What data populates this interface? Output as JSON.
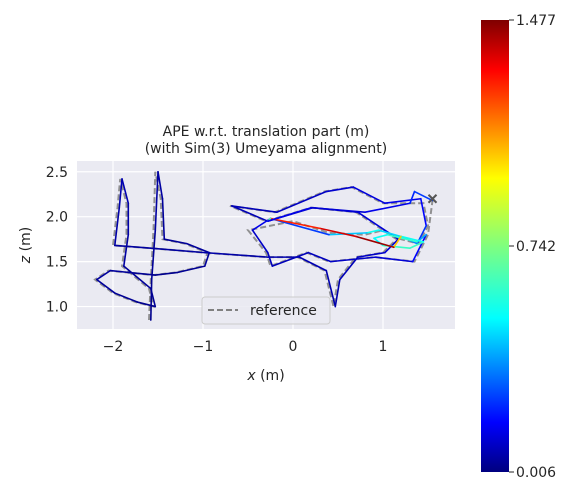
{
  "chart_data": {
    "type": "line",
    "title_line1": "APE w.r.t. translation part (m)",
    "title_line2": "(with Sim(3) Umeyama alignment)",
    "xlabel_var": "x",
    "xlabel_unit": " (m)",
    "ylabel_var": "z",
    "ylabel_unit": " (m)",
    "xlim": [
      -2.4,
      1.8
    ],
    "ylim": [
      0.75,
      2.62
    ],
    "xticks": [
      -2,
      -1,
      0,
      1
    ],
    "xtick_labels": [
      "−2",
      "−1",
      "0",
      "1"
    ],
    "yticks": [
      1.0,
      1.5,
      2.0,
      2.5
    ],
    "ytick_labels": [
      "1.0",
      "1.5",
      "2.0",
      "2.5"
    ],
    "grid": true,
    "background": "#eaeaf2",
    "legend": {
      "placement": "lower-center",
      "entries": [
        "reference"
      ]
    },
    "reference_color": "#808080",
    "reference_style": "dashed",
    "end_marker": {
      "symbol": "x",
      "x": 1.55,
      "y": 2.2,
      "color": "#555555"
    },
    "colorbar": {
      "colormap": "jet",
      "min": 0.006,
      "mid": 0.742,
      "max": 1.477,
      "tick_labels": [
        "1.477",
        "0.742",
        "0.006"
      ]
    },
    "series": [
      {
        "role": "reference",
        "points": [
          [
            -1.6,
            0.85
          ],
          [
            -1.58,
            1.3
          ],
          [
            -1.55,
            1.85
          ],
          [
            -1.53,
            2.5
          ],
          [
            -1.47,
            2.2
          ],
          [
            -1.45,
            1.75
          ],
          [
            -1.2,
            1.7
          ],
          [
            -0.95,
            1.6
          ],
          [
            -1.0,
            1.45
          ],
          [
            -1.3,
            1.38
          ],
          [
            -1.55,
            1.35
          ],
          [
            -1.85,
            1.38
          ],
          [
            -2.05,
            1.4
          ],
          [
            -2.2,
            1.3
          ],
          [
            -2.0,
            1.15
          ],
          [
            -1.75,
            1.05
          ],
          [
            -1.55,
            1.0
          ],
          [
            -1.6,
            1.2
          ],
          [
            -1.9,
            1.45
          ],
          [
            -1.85,
            1.8
          ],
          [
            -1.85,
            2.15
          ],
          [
            -1.92,
            2.42
          ],
          [
            -1.95,
            2.1
          ],
          [
            -2.0,
            1.68
          ],
          [
            -1.6,
            1.65
          ],
          [
            -1.0,
            1.6
          ],
          [
            -0.3,
            1.55
          ],
          [
            0.05,
            1.55
          ],
          [
            0.35,
            1.4
          ],
          [
            0.45,
            1.0
          ],
          [
            0.5,
            1.3
          ],
          [
            0.7,
            1.55
          ],
          [
            1.0,
            1.6
          ],
          [
            1.15,
            1.75
          ],
          [
            0.7,
            2.05
          ],
          [
            0.2,
            2.1
          ],
          [
            -0.3,
            1.95
          ],
          [
            -0.7,
            2.12
          ],
          [
            -0.2,
            2.05
          ],
          [
            0.35,
            2.28
          ],
          [
            0.65,
            2.33
          ],
          [
            1.0,
            2.15
          ],
          [
            1.45,
            2.15
          ],
          [
            1.5,
            1.9
          ],
          [
            1.4,
            1.7
          ],
          [
            1.2,
            1.75
          ],
          [
            1.0,
            1.85
          ],
          [
            0.8,
            1.8
          ],
          [
            0.4,
            1.82
          ],
          [
            0.0,
            1.95
          ],
          [
            -0.5,
            1.85
          ],
          [
            -0.3,
            1.6
          ],
          [
            -0.25,
            1.45
          ],
          [
            0.15,
            1.6
          ],
          [
            0.4,
            1.5
          ],
          [
            0.9,
            1.55
          ],
          [
            1.35,
            1.5
          ],
          [
            1.5,
            1.8
          ],
          [
            1.55,
            2.18
          ]
        ]
      },
      {
        "role": "estimate",
        "points": [
          [
            -1.58,
            0.85,
            0.02
          ],
          [
            -1.57,
            1.3,
            0.03
          ],
          [
            -1.53,
            1.85,
            0.05
          ],
          [
            -1.5,
            2.5,
            0.06
          ],
          [
            -1.45,
            2.2,
            0.05
          ],
          [
            -1.43,
            1.75,
            0.04
          ],
          [
            -1.18,
            1.7,
            0.04
          ],
          [
            -0.93,
            1.6,
            0.05
          ],
          [
            -0.98,
            1.45,
            0.04
          ],
          [
            -1.28,
            1.38,
            0.03
          ],
          [
            -1.53,
            1.35,
            0.03
          ],
          [
            -1.83,
            1.38,
            0.04
          ],
          [
            -2.03,
            1.4,
            0.05
          ],
          [
            -2.18,
            1.3,
            0.05
          ],
          [
            -1.98,
            1.15,
            0.04
          ],
          [
            -1.73,
            1.05,
            0.03
          ],
          [
            -1.53,
            1.0,
            0.03
          ],
          [
            -1.58,
            1.2,
            0.04
          ],
          [
            -1.88,
            1.45,
            0.05
          ],
          [
            -1.83,
            1.8,
            0.06
          ],
          [
            -1.83,
            2.15,
            0.07
          ],
          [
            -1.9,
            2.42,
            0.08
          ],
          [
            -1.93,
            2.1,
            0.07
          ],
          [
            -1.98,
            1.68,
            0.06
          ],
          [
            -1.58,
            1.65,
            0.05
          ],
          [
            -0.98,
            1.6,
            0.06
          ],
          [
            -0.28,
            1.55,
            0.07
          ],
          [
            0.07,
            1.55,
            0.08
          ],
          [
            0.37,
            1.4,
            0.08
          ],
          [
            0.47,
            1.0,
            0.06
          ],
          [
            0.52,
            1.3,
            0.08
          ],
          [
            0.72,
            1.55,
            0.1
          ],
          [
            1.02,
            1.6,
            0.12
          ],
          [
            1.17,
            1.75,
            0.14
          ],
          [
            0.72,
            2.05,
            0.12
          ],
          [
            0.22,
            2.1,
            0.1
          ],
          [
            -0.28,
            1.95,
            0.09
          ],
          [
            -0.68,
            2.12,
            0.08
          ],
          [
            -0.18,
            2.05,
            0.09
          ],
          [
            0.37,
            2.28,
            0.11
          ],
          [
            0.67,
            2.33,
            0.13
          ],
          [
            1.02,
            2.15,
            0.15
          ],
          [
            1.42,
            2.2,
            0.17
          ],
          [
            1.48,
            1.9,
            0.22
          ],
          [
            1.38,
            1.7,
            0.3
          ],
          [
            1.2,
            1.78,
            0.45
          ],
          [
            0.95,
            1.85,
            0.55
          ],
          [
            0.82,
            1.82,
            0.6
          ],
          [
            0.4,
            1.8,
            0.35
          ],
          [
            -0.25,
            1.98,
            0.2
          ],
          [
            -0.45,
            1.85,
            0.12
          ],
          [
            -0.28,
            1.6,
            0.1
          ],
          [
            -0.23,
            1.45,
            0.09
          ],
          [
            0.17,
            1.6,
            0.09
          ],
          [
            0.42,
            1.5,
            0.1
          ],
          [
            0.92,
            1.55,
            0.12
          ],
          [
            1.33,
            1.5,
            0.14
          ],
          [
            1.48,
            1.8,
            0.25
          ],
          [
            1.38,
            1.72,
            0.62
          ],
          [
            1.05,
            1.8,
            0.65
          ],
          [
            0.9,
            1.76,
            0.5
          ],
          [
            1.0,
            1.68,
            0.6
          ],
          [
            1.3,
            1.65,
            0.68
          ],
          [
            1.45,
            1.72,
            0.6
          ],
          [
            1.2,
            1.78,
            0.55
          ],
          [
            1.12,
            1.66,
            1.47
          ],
          [
            0.7,
            1.78,
            1.4
          ],
          [
            0.3,
            1.87,
            1.3
          ],
          [
            -0.25,
            1.98,
            1.2
          ],
          [
            -0.28,
            1.95,
            0.2
          ],
          [
            0.2,
            2.1,
            0.12
          ],
          [
            0.8,
            2.05,
            0.14
          ],
          [
            1.3,
            2.15,
            0.18
          ],
          [
            1.35,
            2.28,
            0.3
          ],
          [
            1.55,
            2.18,
            0.25
          ]
        ]
      }
    ]
  }
}
